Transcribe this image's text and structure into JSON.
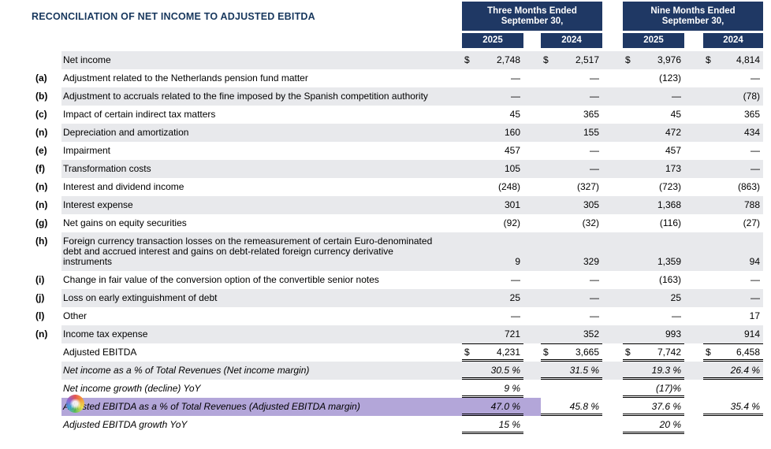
{
  "page": {
    "title": "RECONCILIATION OF NET INCOME TO ADJUSTED EBITDA"
  },
  "colors": {
    "header_bg": "#1f3864",
    "header_text": "#ffffff",
    "row_shade": "#e8e9ec",
    "highlight": "#b3a6d9",
    "title_color": "#17375d"
  },
  "header": {
    "groups": [
      {
        "label": "Three Months Ended September 30,",
        "years": [
          "2025",
          "2024"
        ]
      },
      {
        "label": "Nine Months Ended September 30,",
        "years": [
          "2025",
          "2024"
        ]
      }
    ]
  },
  "rows": [
    {
      "note": "",
      "label": "Net income",
      "values": [
        "2,748",
        "2,517",
        "3,976",
        "4,814"
      ],
      "dollar": true,
      "shaded": true
    },
    {
      "note": "(a)",
      "label": "Adjustment related to the Netherlands pension fund matter",
      "values": [
        "—",
        "—",
        "(123)",
        "—"
      ]
    },
    {
      "note": "(b)",
      "label": "Adjustment to accruals related to the fine imposed by the Spanish competition authority",
      "values": [
        "—",
        "—",
        "—",
        "(78)"
      ],
      "shaded": true
    },
    {
      "note": "(c)",
      "label": "Impact of certain indirect tax matters",
      "values": [
        "45",
        "365",
        "45",
        "365"
      ]
    },
    {
      "note": "(n)",
      "label": "Depreciation and amortization",
      "values": [
        "160",
        "155",
        "472",
        "434"
      ],
      "shaded": true
    },
    {
      "note": "(e)",
      "label": "Impairment",
      "values": [
        "457",
        "—",
        "457",
        "—"
      ]
    },
    {
      "note": "(f)",
      "label": "Transformation costs",
      "values": [
        "105",
        "—",
        "173",
        "—"
      ],
      "shaded": true
    },
    {
      "note": "(n)",
      "label": "Interest and dividend income",
      "values": [
        "(248)",
        "(327)",
        "(723)",
        "(863)"
      ]
    },
    {
      "note": "(n)",
      "label": "Interest expense",
      "values": [
        "301",
        "305",
        "1,368",
        "788"
      ],
      "shaded": true
    },
    {
      "note": "(g)",
      "label": "Net gains on equity securities",
      "values": [
        "(92)",
        "(32)",
        "(116)",
        "(27)"
      ]
    },
    {
      "note": "(h)",
      "label": "Foreign currency transaction losses on the remeasurement of certain Euro-denominated debt and accrued interest and gains on debt-related foreign currency derivative instruments",
      "values": [
        "9",
        "329",
        "1,359",
        "94"
      ],
      "shaded": true
    },
    {
      "note": "(i)",
      "label": "Change in fair value of the conversion option of the convertible senior notes",
      "values": [
        "—",
        "—",
        "(163)",
        "—"
      ]
    },
    {
      "note": "(j)",
      "label": "Loss on early extinguishment of debt",
      "values": [
        "25",
        "—",
        "25",
        "—"
      ],
      "shaded": true
    },
    {
      "note": "(l)",
      "label": "Other",
      "values": [
        "—",
        "—",
        "—",
        "17"
      ]
    },
    {
      "note": "(n)",
      "label": "Income tax expense",
      "values": [
        "721",
        "352",
        "993",
        "914"
      ],
      "shaded": true
    },
    {
      "note": "",
      "label": "Adjusted EBITDA",
      "values": [
        "4,231",
        "3,665",
        "7,742",
        "6,458"
      ],
      "dollar": true,
      "top_border": true,
      "underline": true
    },
    {
      "note": "",
      "label": "Net income as a % of Total Revenues (Net income margin)",
      "values": [
        "30.5 %",
        "31.5 %",
        "19.3 %",
        "26.4 %"
      ],
      "italic": true,
      "shaded": true,
      "underline": true
    },
    {
      "note": "",
      "label": "Net income growth (decline) YoY",
      "values": [
        "9 %",
        "",
        "(17)%",
        ""
      ],
      "italic": true,
      "underline": true
    },
    {
      "note": "",
      "label": "Adjusted EBITDA as a % of Total Revenues (Adjusted EBITDA margin)",
      "values": [
        "47.0 %",
        "45.8 %",
        "37.6 %",
        "35.4 %"
      ],
      "italic": true,
      "underline": true,
      "highlight": true
    },
    {
      "note": "",
      "label": "Adjusted EBITDA growth YoY",
      "values": [
        "15 %",
        "",
        "20 %",
        ""
      ],
      "italic": true,
      "underline": true
    }
  ]
}
